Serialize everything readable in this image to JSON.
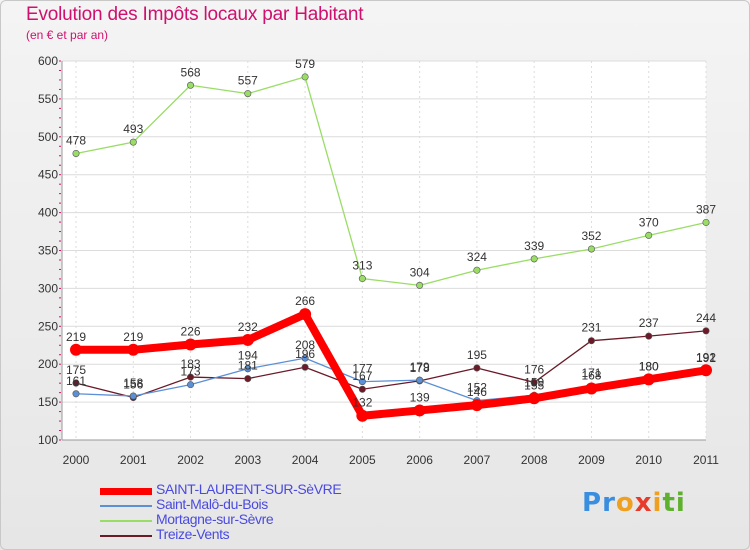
{
  "chart_data": {
    "type": "line",
    "title": "Evolution des Impôts locaux par Habitant",
    "subtitle": "(en € et par an)",
    "x": [
      "2000",
      "2001",
      "2002",
      "2003",
      "2004",
      "2005",
      "2006",
      "2007",
      "2008",
      "2009",
      "2010",
      "2011"
    ],
    "ylim": [
      100,
      600
    ],
    "yticks": [
      "100",
      "150",
      "200",
      "250",
      "300",
      "350",
      "400",
      "450",
      "500",
      "550",
      "600"
    ],
    "series": [
      {
        "name": "SAINT-LAURENT-SUR-SèVRE",
        "color": "#ff0000",
        "values": [
          219,
          219,
          226,
          232,
          266,
          132,
          139,
          146,
          155,
          168,
          180,
          192
        ]
      },
      {
        "name": "Saint-Malô-du-Bois",
        "color": "#5b8fd6",
        "values": [
          161,
          158,
          173,
          194,
          208,
          177,
          179,
          152,
          159,
          171,
          180,
          191
        ]
      },
      {
        "name": "Mortagne-sur-Sèvre",
        "color": "#99dd66",
        "values": [
          478,
          493,
          568,
          557,
          579,
          313,
          304,
          324,
          339,
          352,
          370,
          387
        ]
      },
      {
        "name": "Treize-Vents",
        "color": "#6b1a28",
        "values": [
          175,
          156,
          183,
          181,
          196,
          167,
          178,
          195,
          176,
          231,
          237,
          244
        ]
      }
    ]
  },
  "logo": {
    "letters": [
      "P",
      "r",
      "o",
      "x",
      "i",
      "t",
      "i"
    ],
    "colors": [
      "#3a8ee0",
      "#3a8ee0",
      "#f0a020",
      "#e83a2a",
      "#f0a020",
      "#60b030",
      "#60b030"
    ]
  }
}
